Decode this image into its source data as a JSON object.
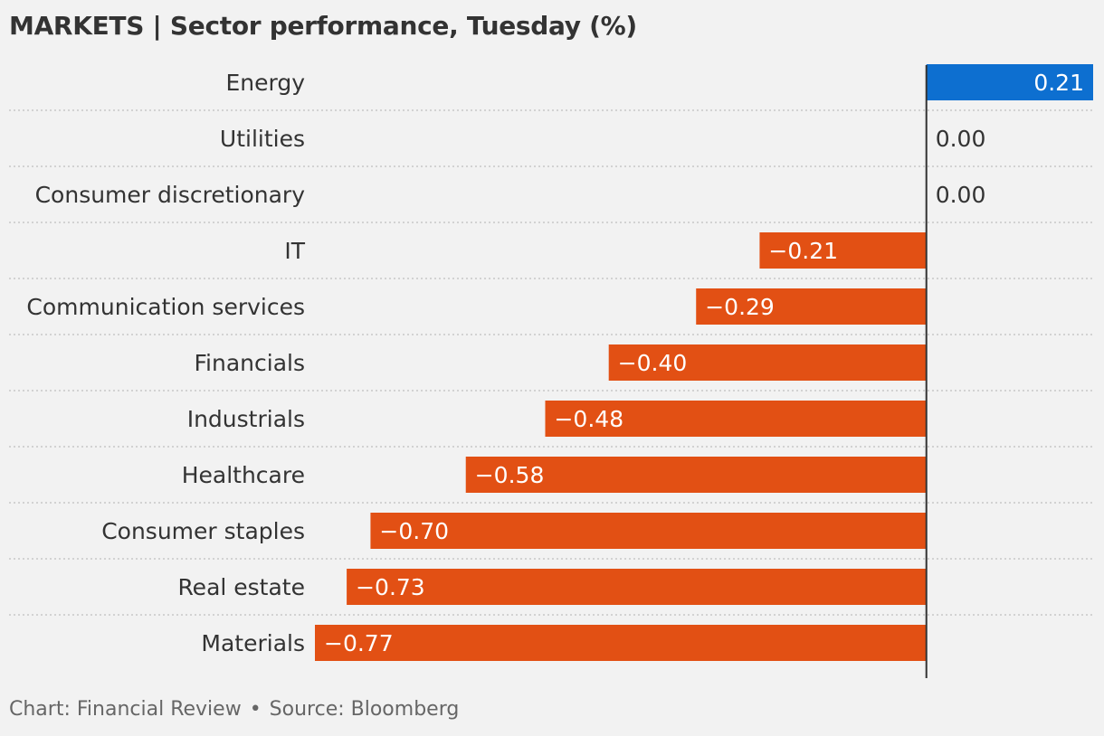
{
  "header": {
    "title": "MARKETS | Sector performance, Tuesday (%)"
  },
  "footer": {
    "credit": "Chart: Financial Review",
    "separator": "•",
    "source": "Source: Bloomberg"
  },
  "colors": {
    "positive": "#0d6fd0",
    "negative": "#e25014",
    "background": "#f2f2f2",
    "text": "#333333",
    "axis": "#333333",
    "grid": "#c8c8c8"
  },
  "chart_data": {
    "type": "bar",
    "orientation": "horizontal",
    "title": "MARKETS | Sector performance, Tuesday (%)",
    "categories": [
      "Energy",
      "Utilities",
      "Consumer discretionary",
      "IT",
      "Communication services",
      "Financials",
      "Industrials",
      "Healthcare",
      "Consumer staples",
      "Real estate",
      "Materials"
    ],
    "values": [
      0.21,
      0.0,
      0.0,
      -0.21,
      -0.29,
      -0.4,
      -0.48,
      -0.58,
      -0.7,
      -0.73,
      -0.77
    ],
    "value_labels": [
      "0.21",
      "0.00",
      "0.00",
      "−0.21",
      "−0.29",
      "−0.40",
      "−0.48",
      "−0.58",
      "−0.70",
      "−0.73",
      "−0.77"
    ],
    "xlim": [
      -0.77,
      0.21
    ],
    "grid": false,
    "legend": "none"
  }
}
